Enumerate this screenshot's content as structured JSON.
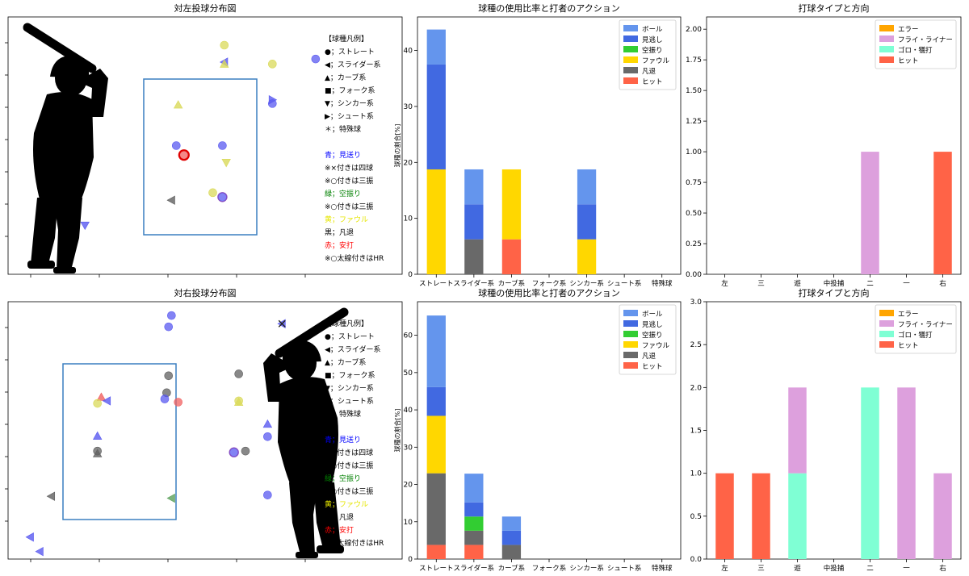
{
  "chart_data": [
    {
      "type": "scatter",
      "title": "対左投球分布図",
      "batter_side": "left",
      "legend": {
        "header": "【球種凡例】",
        "shapes": [
          "●；ストレート",
          "◀；スライダー系",
          "▲；カーブ系",
          "■；フォーク系",
          "▼；シンカー系",
          "▶；シュート系",
          "＊；特殊球"
        ],
        "colors": [
          {
            "text": "青；見送り",
            "color": "#0000ff"
          },
          {
            "text": "※×付きは四球",
            "color": "#000000"
          },
          {
            "text": "※○付きは三振",
            "color": "#000000"
          },
          {
            "text": "緑；空振り",
            "color": "#008000"
          },
          {
            "text": "※○付きは三振",
            "color": "#000000"
          },
          {
            "text": "黄；ファウル",
            "color": "#e6e600"
          },
          {
            "text": "黒；凡退",
            "color": "#000000"
          },
          {
            "text": "赤；安打",
            "color": "#ff0000"
          },
          {
            "text": "※○太線付きはHR",
            "color": "#000000"
          }
        ]
      },
      "points": [
        {
          "x": 0.4,
          "y": 4.55,
          "shape": "circle",
          "color": "yellow"
        },
        {
          "x": 0.4,
          "y": 4.28,
          "shape": "left",
          "color": "blue"
        },
        {
          "x": 0.4,
          "y": 4.25,
          "shape": "up",
          "color": "yellow"
        },
        {
          "x": 0.9,
          "y": 4.25,
          "shape": "circle",
          "color": "yellow"
        },
        {
          "x": 1.35,
          "y": 4.33,
          "shape": "circle",
          "color": "blue"
        },
        {
          "x": 0.9,
          "y": 3.68,
          "shape": "right",
          "color": "blue"
        },
        {
          "x": 0.9,
          "y": 3.62,
          "shape": "circle",
          "color": "blue"
        },
        {
          "x": -0.08,
          "y": 3.6,
          "shape": "up",
          "color": "yellow"
        },
        {
          "x": -0.1,
          "y": 2.95,
          "shape": "circle",
          "color": "blue"
        },
        {
          "x": 0.38,
          "y": 2.95,
          "shape": "circle",
          "color": "blue"
        },
        {
          "x": -0.02,
          "y": 2.8,
          "shape": "circle",
          "color": "red",
          "hr": true
        },
        {
          "x": 0.42,
          "y": 2.68,
          "shape": "down",
          "color": "yellow"
        },
        {
          "x": 0.28,
          "y": 2.2,
          "shape": "circle",
          "color": "yellow"
        },
        {
          "x": 0.38,
          "y": 2.13,
          "shape": "circle",
          "color": "blue",
          "ring": true
        },
        {
          "x": -0.15,
          "y": 2.08,
          "shape": "left",
          "color": "black"
        },
        {
          "x": -1.05,
          "y": 1.68,
          "shape": "down",
          "color": "blue"
        }
      ]
    },
    {
      "type": "bar",
      "title": "球種の使用比率と打者のアクション",
      "ylabel": "球種の割合[%]",
      "ylim": [
        0,
        46
      ],
      "yticks": [
        0,
        10,
        20,
        30,
        40
      ],
      "categories": [
        "ストレート",
        "スライダー系",
        "カーブ系",
        "フォーク系",
        "シンカー系",
        "シュート系",
        "特殊球"
      ],
      "series": [
        {
          "name": "ボール",
          "color": "#6495ed",
          "values": [
            6.25,
            6.25,
            0,
            0,
            6.25,
            0,
            0
          ]
        },
        {
          "name": "見逃し",
          "color": "#4169e1",
          "values": [
            18.75,
            6.25,
            0,
            0,
            6.25,
            0,
            0
          ]
        },
        {
          "name": "空振り",
          "color": "#32cd32",
          "values": [
            0,
            0,
            0,
            0,
            0,
            0,
            0
          ]
        },
        {
          "name": "ファウル",
          "color": "#ffd700",
          "values": [
            18.75,
            0,
            12.5,
            0,
            6.25,
            0,
            0
          ]
        },
        {
          "name": "凡退",
          "color": "#696969",
          "values": [
            0,
            6.25,
            0,
            0,
            0,
            0,
            0
          ]
        },
        {
          "name": "ヒット",
          "color": "#ff6347",
          "values": [
            0,
            0,
            6.25,
            0,
            0,
            0,
            0
          ]
        }
      ],
      "stack_order": [
        "ヒット",
        "凡退",
        "ファウル",
        "空振り",
        "見逃し",
        "ボール"
      ],
      "legend": "top-right"
    },
    {
      "type": "bar",
      "title": "打球タイプと方向",
      "ylim": [
        0,
        2.1
      ],
      "yticks": [
        "0.00",
        "0.25",
        "0.50",
        "0.75",
        "1.00",
        "1.25",
        "1.50",
        "1.75",
        "2.00"
      ],
      "categories": [
        "左",
        "三",
        "遊",
        "中投捕",
        "二",
        "一",
        "右"
      ],
      "series": [
        {
          "name": "エラー",
          "color": "#ffa500",
          "values": [
            0,
            0,
            0,
            0,
            0,
            0,
            0
          ]
        },
        {
          "name": "フライ・ライナー",
          "color": "#dda0dd",
          "values": [
            0,
            0,
            0,
            0,
            1,
            0,
            0
          ]
        },
        {
          "name": "ゴロ・犠打",
          "color": "#7fffd4",
          "values": [
            0,
            0,
            0,
            0,
            0,
            0,
            0
          ]
        },
        {
          "name": "ヒット",
          "color": "#ff6347",
          "values": [
            0,
            0,
            0,
            0,
            0,
            0,
            1
          ]
        }
      ],
      "stack_order": [
        "ヒット",
        "ゴロ・犠打",
        "フライ・ライナー",
        "エラー"
      ],
      "legend": "top-right"
    },
    {
      "type": "scatter",
      "title": "対右投球分布図",
      "batter_side": "right",
      "legend": {
        "header": "【球種凡例】",
        "shapes": [
          "●；ストレート",
          "◀；スライダー系",
          "▲；カーブ系",
          "■；フォーク系",
          "▼；シンカー系",
          "▶；シュート系",
          "＊；特殊球"
        ],
        "colors": [
          {
            "text": "青；見送り",
            "color": "#0000ff"
          },
          {
            "text": "※×付きは四球",
            "color": "#000000"
          },
          {
            "text": "※○付きは三振",
            "color": "#000000"
          },
          {
            "text": "緑；空振り",
            "color": "#008000"
          },
          {
            "text": "※○付きは三振",
            "color": "#000000"
          },
          {
            "text": "黄；ファウル",
            "color": "#e6e600"
          },
          {
            "text": "黒；凡退",
            "color": "#000000"
          },
          {
            "text": "赤；安打",
            "color": "#ff0000"
          },
          {
            "text": "※○太線付きはHR",
            "color": "#000000"
          }
        ]
      },
      "points": [
        {
          "x": -0.75,
          "y": 4.78,
          "shape": "circle",
          "color": "blue"
        },
        {
          "x": -0.78,
          "y": 4.6,
          "shape": "circle",
          "color": "blue"
        },
        {
          "x": 0.4,
          "y": 4.65,
          "shape": "left",
          "color": "blue",
          "walk": true
        },
        {
          "x": -0.78,
          "y": 3.82,
          "shape": "circle",
          "color": "black"
        },
        {
          "x": -0.05,
          "y": 3.85,
          "shape": "circle",
          "color": "black"
        },
        {
          "x": -0.8,
          "y": 3.55,
          "shape": "circle",
          "color": "black"
        },
        {
          "x": -1.48,
          "y": 3.48,
          "shape": "up",
          "color": "red"
        },
        {
          "x": -1.42,
          "y": 3.42,
          "shape": "left",
          "color": "blue"
        },
        {
          "x": -1.52,
          "y": 3.38,
          "shape": "circle",
          "color": "yellow"
        },
        {
          "x": -0.82,
          "y": 3.45,
          "shape": "circle",
          "color": "blue"
        },
        {
          "x": -0.68,
          "y": 3.4,
          "shape": "circle",
          "color": "red"
        },
        {
          "x": -0.05,
          "y": 3.42,
          "shape": "circle",
          "color": "yellow"
        },
        {
          "x": -0.05,
          "y": 3.4,
          "shape": "up",
          "color": "yellow"
        },
        {
          "x": 0.25,
          "y": 3.05,
          "shape": "up",
          "color": "blue"
        },
        {
          "x": 0.25,
          "y": 2.85,
          "shape": "circle",
          "color": "blue"
        },
        {
          "x": -1.52,
          "y": 2.86,
          "shape": "up",
          "color": "blue"
        },
        {
          "x": -1.52,
          "y": 2.62,
          "shape": "circle",
          "color": "black"
        },
        {
          "x": -1.52,
          "y": 2.58,
          "shape": "up",
          "color": "black"
        },
        {
          "x": -0.1,
          "y": 2.6,
          "shape": "circle",
          "color": "blue",
          "ring": true
        },
        {
          "x": 0.02,
          "y": 2.62,
          "shape": "circle",
          "color": "black"
        },
        {
          "x": 0.25,
          "y": 1.92,
          "shape": "circle",
          "color": "blue"
        },
        {
          "x": -0.75,
          "y": 1.87,
          "shape": "left",
          "color": "green"
        },
        {
          "x": -2.0,
          "y": 1.9,
          "shape": "left",
          "color": "black"
        },
        {
          "x": -2.22,
          "y": 1.25,
          "shape": "left",
          "color": "blue"
        },
        {
          "x": -2.12,
          "y": 1.02,
          "shape": "left",
          "color": "blue"
        }
      ]
    },
    {
      "type": "bar",
      "title": "球種の使用比率と打者のアクション",
      "ylabel": "球種の割合[%]",
      "ylim": [
        0,
        69
      ],
      "yticks": [
        0,
        10,
        20,
        30,
        40,
        50,
        60
      ],
      "categories": [
        "ストレート",
        "スライダー系",
        "カーブ系",
        "フォーク系",
        "シンカー系",
        "シュート系",
        "特殊球"
      ],
      "series": [
        {
          "name": "ボール",
          "color": "#6495ed",
          "values": [
            19.2,
            7.7,
            3.8,
            0,
            0,
            0,
            0
          ]
        },
        {
          "name": "見逃し",
          "color": "#4169e1",
          "values": [
            7.7,
            3.8,
            3.8,
            0,
            0,
            0,
            0
          ]
        },
        {
          "name": "空振り",
          "color": "#32cd32",
          "values": [
            0,
            3.8,
            0,
            0,
            0,
            0,
            0
          ]
        },
        {
          "name": "ファウル",
          "color": "#ffd700",
          "values": [
            15.4,
            0,
            0,
            0,
            0,
            0,
            0
          ]
        },
        {
          "name": "凡退",
          "color": "#696969",
          "values": [
            19.2,
            3.8,
            3.8,
            0,
            0,
            0,
            0
          ]
        },
        {
          "name": "ヒット",
          "color": "#ff6347",
          "values": [
            3.8,
            3.8,
            0,
            0,
            0,
            0,
            0
          ]
        }
      ],
      "stack_order": [
        "ヒット",
        "凡退",
        "ファウル",
        "空振り",
        "見逃し",
        "ボール"
      ],
      "legend": "top-right"
    },
    {
      "type": "bar",
      "title": "打球タイプと方向",
      "ylim": [
        0,
        3
      ],
      "yticks": [
        "0.0",
        "0.5",
        "1.0",
        "1.5",
        "2.0",
        "2.5",
        "3.0"
      ],
      "categories": [
        "左",
        "三",
        "遊",
        "中投捕",
        "二",
        "一",
        "右"
      ],
      "series": [
        {
          "name": "エラー",
          "color": "#ffa500",
          "values": [
            0,
            0,
            0,
            0,
            0,
            0,
            0
          ]
        },
        {
          "name": "フライ・ライナー",
          "color": "#dda0dd",
          "values": [
            0,
            0,
            1,
            0,
            0,
            2,
            1
          ]
        },
        {
          "name": "ゴロ・犠打",
          "color": "#7fffd4",
          "values": [
            0,
            0,
            1,
            0,
            2,
            0,
            0
          ]
        },
        {
          "name": "ヒット",
          "color": "#ff6347",
          "values": [
            1,
            1,
            0,
            0,
            0,
            0,
            0
          ]
        }
      ],
      "stack_order": [
        "ヒット",
        "ゴロ・犠打",
        "フライ・ライナー",
        "エラー"
      ],
      "legend": "top-right"
    }
  ],
  "colors": {
    "blue": "#5a5af0",
    "yellow": "#dada5a",
    "red": "#f06060",
    "black": "#606060",
    "green": "#5aa05a",
    "zone": "#3a7fc0",
    "silhouette": "#000000"
  }
}
